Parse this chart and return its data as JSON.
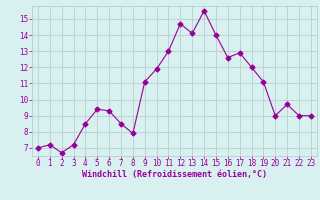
{
  "x": [
    0,
    1,
    2,
    3,
    4,
    5,
    6,
    7,
    8,
    9,
    10,
    11,
    12,
    13,
    14,
    15,
    16,
    17,
    18,
    19,
    20,
    21,
    22,
    23
  ],
  "y": [
    7.0,
    7.2,
    6.7,
    7.2,
    8.5,
    9.4,
    9.3,
    8.5,
    7.9,
    11.1,
    11.9,
    13.0,
    14.7,
    14.1,
    15.5,
    14.0,
    12.6,
    12.9,
    12.0,
    11.1,
    9.0,
    9.7,
    9.0,
    9.0
  ],
  "line_color": "#990099",
  "marker": "D",
  "marker_size": 2.5,
  "bg_color": "#d8f0f0",
  "grid_color": "#b0c8c8",
  "xlabel": "Windchill (Refroidissement éolien,°C)",
  "xlabel_color": "#990099",
  "tick_color": "#990099",
  "xlim": [
    -0.5,
    23.5
  ],
  "ylim": [
    6.5,
    15.8
  ],
  "yticks": [
    7,
    8,
    9,
    10,
    11,
    12,
    13,
    14,
    15
  ],
  "xticks": [
    0,
    1,
    2,
    3,
    4,
    5,
    6,
    7,
    8,
    9,
    10,
    11,
    12,
    13,
    14,
    15,
    16,
    17,
    18,
    19,
    20,
    21,
    22,
    23
  ],
  "tick_fontsize": 5.5,
  "xlabel_fontsize": 6.0
}
